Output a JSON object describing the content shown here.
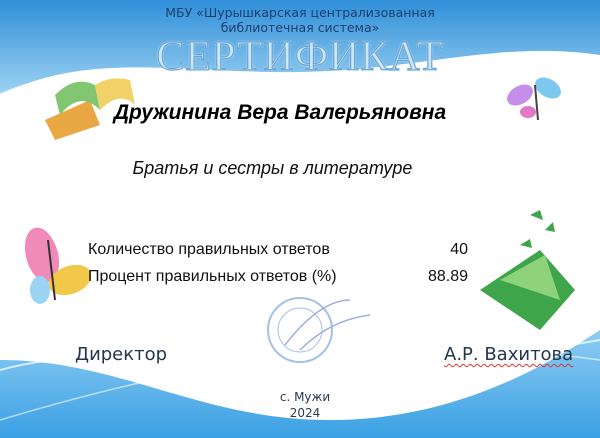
{
  "header": {
    "organization_line1": "МБУ «Шурышкарская централизованная",
    "organization_line2": "библиотечная система»",
    "title": "СЕРТИФИКАТ"
  },
  "recipient": {
    "name": "Дружинина Вера Валерьяновна"
  },
  "quiz": {
    "topic": "Братья и сестры в литературе"
  },
  "results": [
    {
      "label": "Количество правильных ответов",
      "value": "40"
    },
    {
      "label": "Процент правильных ответов (%)",
      "value": "88.89"
    }
  ],
  "signature": {
    "position": "Директор",
    "name": "А.Р. Вахитова"
  },
  "footer": {
    "place": "с. Мужи",
    "year": "2024"
  },
  "colors": {
    "accent": "#4fa8e0",
    "text": "#1d3f6e"
  }
}
